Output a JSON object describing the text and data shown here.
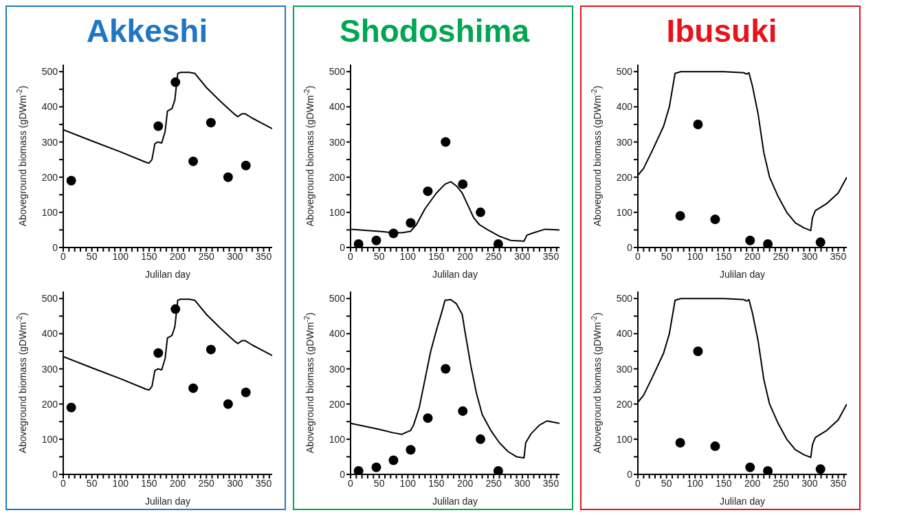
{
  "chart_data": [
    {
      "type": "line",
      "title": "Akkeshi",
      "xlabel": "Julilan day",
      "ylabel": "Aboveground biomass (gDWm$^{-2}$)",
      "xlim": [
        0,
        365
      ],
      "ylim": [
        0,
        520
      ],
      "xticks": [
        0,
        {
          "value": 10,
          "label": null
        },
        {
          "value": 20,
          "label": null
        },
        {
          "value": 30,
          "label": null
        },
        {
          "value": 40,
          "label": null
        },
        50,
        {
          "value": 60,
          "label": null
        },
        {
          "value": 70,
          "label": null
        },
        {
          "value": 80,
          "label": null
        },
        {
          "value": 90,
          "label": null
        },
        100,
        {
          "value": 110,
          "label": null
        },
        {
          "value": 120,
          "label": null
        },
        {
          "value": 130,
          "label": null
        },
        {
          "value": 140,
          "label": null
        },
        150,
        {
          "value": 160,
          "label": null
        },
        {
          "value": 170,
          "label": null
        },
        {
          "value": 180,
          "label": null
        },
        {
          "value": 190,
          "label": null
        },
        200,
        {
          "value": 210,
          "label": null
        },
        {
          "value": 220,
          "label": null
        },
        {
          "value": 230,
          "label": null
        },
        {
          "value": 240,
          "label": null
        },
        250,
        {
          "value": 260,
          "label": null
        },
        {
          "value": 270,
          "label": null
        },
        {
          "value": 280,
          "label": null
        },
        {
          "value": 290,
          "label": null
        },
        300,
        {
          "value": 310,
          "label": null
        },
        {
          "value": 320,
          "label": null
        },
        {
          "value": 330,
          "label": null
        },
        {
          "value": 340,
          "label": null
        },
        350,
        {
          "value": 360,
          "label": null
        }
      ],
      "yticks": [
        0,
        {
          "value": 50,
          "label": null
        },
        100,
        {
          "value": 150,
          "label": null
        },
        200,
        {
          "value": 250,
          "label": null
        },
        300,
        {
          "value": 350,
          "label": null
        },
        400,
        {
          "value": 450,
          "label": null
        },
        500
      ],
      "series": [
        {
          "type": "line",
          "color": "#000000",
          "x": [
            0,
            50,
            100,
            145,
            150,
            155,
            160,
            165,
            172,
            178,
            182,
            190,
            195,
            200,
            205,
            220,
            230,
            250,
            275,
            300,
            305,
            312,
            318,
            330,
            345,
            365
          ],
          "values": [
            335,
            303,
            272,
            242,
            240,
            250,
            295,
            300,
            297,
            330,
            388,
            395,
            420,
            495,
            498,
            498,
            495,
            455,
            415,
            378,
            372,
            380,
            380,
            368,
            355,
            338
          ]
        },
        {
          "type": "scatter",
          "marker": "circle",
          "color": "#000000",
          "x": [
            14,
            166,
            196,
            227,
            258,
            288,
            319
          ],
          "values": [
            190,
            345,
            470,
            245,
            355,
            200,
            233
          ]
        }
      ]
    },
    {
      "type": "line",
      "title": "Shodoshima",
      "xlabel": "Julilan day",
      "ylabel": "Aboveground biomass (gDWm$^{-2}$)",
      "xlim": [
        0,
        365
      ],
      "ylim": [
        0,
        520
      ],
      "xticks": [
        0,
        {
          "value": 10,
          "label": null
        },
        {
          "value": 20,
          "label": null
        },
        {
          "value": 30,
          "label": null
        },
        {
          "value": 40,
          "label": null
        },
        50,
        {
          "value": 60,
          "label": null
        },
        {
          "value": 70,
          "label": null
        },
        {
          "value": 80,
          "label": null
        },
        {
          "value": 90,
          "label": null
        },
        100,
        {
          "value": 110,
          "label": null
        },
        {
          "value": 120,
          "label": null
        },
        {
          "value": 130,
          "label": null
        },
        {
          "value": 140,
          "label": null
        },
        150,
        {
          "value": 160,
          "label": null
        },
        {
          "value": 170,
          "label": null
        },
        {
          "value": 180,
          "label": null
        },
        {
          "value": 190,
          "label": null
        },
        200,
        {
          "value": 210,
          "label": null
        },
        {
          "value": 220,
          "label": null
        },
        {
          "value": 230,
          "label": null
        },
        {
          "value": 240,
          "label": null
        },
        250,
        {
          "value": 260,
          "label": null
        },
        {
          "value": 270,
          "label": null
        },
        {
          "value": 280,
          "label": null
        },
        {
          "value": 290,
          "label": null
        },
        300,
        {
          "value": 310,
          "label": null
        },
        {
          "value": 320,
          "label": null
        },
        {
          "value": 330,
          "label": null
        },
        {
          "value": 340,
          "label": null
        },
        350,
        {
          "value": 360,
          "label": null
        }
      ],
      "yticks": [
        0,
        {
          "value": 50,
          "label": null
        },
        100,
        {
          "value": 150,
          "label": null
        },
        200,
        {
          "value": 250,
          "label": null
        },
        300,
        {
          "value": 350,
          "label": null
        },
        400,
        {
          "value": 450,
          "label": null
        },
        500
      ],
      "series": [
        {
          "type": "line",
          "color": "#000000",
          "x": [
            0,
            50,
            75,
            90,
            105,
            115,
            130,
            150,
            165,
            175,
            185,
            195,
            205,
            215,
            225,
            240,
            260,
            280,
            303,
            308,
            320,
            340,
            365
          ],
          "values": [
            52,
            46,
            42,
            42,
            46,
            65,
            110,
            155,
            180,
            187,
            175,
            155,
            120,
            85,
            65,
            50,
            32,
            20,
            18,
            35,
            42,
            52,
            50
          ]
        },
        {
          "type": "scatter",
          "marker": "circle",
          "color": "#000000",
          "x": [
            14,
            45,
            75,
            105,
            135,
            166,
            196,
            227,
            258
          ],
          "values": [
            10,
            20,
            40,
            70,
            160,
            300,
            180,
            100,
            10
          ]
        }
      ]
    },
    {
      "type": "line",
      "title": "Ibusuki",
      "xlabel": "Julilan day",
      "ylabel": "Aboveground biomass (gDWm$^{-2}$)",
      "xlim": [
        0,
        365
      ],
      "ylim": [
        0,
        520
      ],
      "xticks": [
        0,
        {
          "value": 10,
          "label": null
        },
        {
          "value": 20,
          "label": null
        },
        {
          "value": 30,
          "label": null
        },
        {
          "value": 40,
          "label": null
        },
        50,
        {
          "value": 60,
          "label": null
        },
        {
          "value": 70,
          "label": null
        },
        {
          "value": 80,
          "label": null
        },
        {
          "value": 90,
          "label": null
        },
        100,
        {
          "value": 110,
          "label": null
        },
        {
          "value": 120,
          "label": null
        },
        {
          "value": 130,
          "label": null
        },
        {
          "value": 140,
          "label": null
        },
        150,
        {
          "value": 160,
          "label": null
        },
        {
          "value": 170,
          "label": null
        },
        {
          "value": 180,
          "label": null
        },
        {
          "value": 190,
          "label": null
        },
        200,
        {
          "value": 210,
          "label": null
        },
        {
          "value": 220,
          "label": null
        },
        {
          "value": 230,
          "label": null
        },
        {
          "value": 240,
          "label": null
        },
        250,
        {
          "value": 260,
          "label": null
        },
        {
          "value": 270,
          "label": null
        },
        {
          "value": 280,
          "label": null
        },
        {
          "value": 290,
          "label": null
        },
        300,
        {
          "value": 310,
          "label": null
        },
        {
          "value": 320,
          "label": null
        },
        {
          "value": 330,
          "label": null
        },
        {
          "value": 340,
          "label": null
        },
        350,
        {
          "value": 360,
          "label": null
        }
      ],
      "yticks": [
        0,
        {
          "value": 50,
          "label": null
        },
        100,
        {
          "value": 150,
          "label": null
        },
        200,
        {
          "value": 250,
          "label": null
        },
        300,
        {
          "value": 350,
          "label": null
        },
        400,
        {
          "value": 450,
          "label": null
        },
        500
      ],
      "series": [
        {
          "type": "line",
          "color": "#000000",
          "x": [
            0,
            10,
            25,
            45,
            55,
            65,
            75,
            150,
            185,
            190,
            194,
            200,
            210,
            220,
            230,
            245,
            260,
            275,
            290,
            302,
            305,
            310,
            330,
            350,
            365
          ],
          "values": [
            205,
            225,
            275,
            345,
            400,
            495,
            500,
            500,
            497,
            493,
            497,
            460,
            380,
            270,
            200,
            145,
            100,
            70,
            56,
            48,
            85,
            105,
            125,
            155,
            200
          ]
        },
        {
          "type": "scatter",
          "marker": "circle",
          "color": "#000000",
          "x": [
            74,
            105,
            135,
            196,
            227,
            319
          ],
          "values": [
            90,
            350,
            80,
            20,
            10,
            15
          ]
        }
      ]
    },
    {
      "type": "line",
      "xlabel": "Julilan day",
      "ylabel": "Aboveground biomass (gDWm$^{-2}$)",
      "xlim": [
        0,
        365
      ],
      "ylim": [
        0,
        520
      ],
      "xticks": [
        0,
        {
          "value": 10,
          "label": null
        },
        {
          "value": 20,
          "label": null
        },
        {
          "value": 30,
          "label": null
        },
        {
          "value": 40,
          "label": null
        },
        50,
        {
          "value": 60,
          "label": null
        },
        {
          "value": 70,
          "label": null
        },
        {
          "value": 80,
          "label": null
        },
        {
          "value": 90,
          "label": null
        },
        100,
        {
          "value": 110,
          "label": null
        },
        {
          "value": 120,
          "label": null
        },
        {
          "value": 130,
          "label": null
        },
        {
          "value": 140,
          "label": null
        },
        150,
        {
          "value": 160,
          "label": null
        },
        {
          "value": 170,
          "label": null
        },
        {
          "value": 180,
          "label": null
        },
        {
          "value": 190,
          "label": null
        },
        200,
        {
          "value": 210,
          "label": null
        },
        {
          "value": 220,
          "label": null
        },
        {
          "value": 230,
          "label": null
        },
        {
          "value": 240,
          "label": null
        },
        250,
        {
          "value": 260,
          "label": null
        },
        {
          "value": 270,
          "label": null
        },
        {
          "value": 280,
          "label": null
        },
        {
          "value": 290,
          "label": null
        },
        300,
        {
          "value": 310,
          "label": null
        },
        {
          "value": 320,
          "label": null
        },
        {
          "value": 330,
          "label": null
        },
        {
          "value": 340,
          "label": null
        },
        350,
        {
          "value": 360,
          "label": null
        }
      ],
      "yticks": [
        0,
        {
          "value": 50,
          "label": null
        },
        100,
        {
          "value": 150,
          "label": null
        },
        200,
        {
          "value": 250,
          "label": null
        },
        300,
        {
          "value": 350,
          "label": null
        },
        400,
        {
          "value": 450,
          "label": null
        },
        500
      ],
      "series": [
        {
          "type": "line",
          "color": "#000000",
          "x": [
            0,
            50,
            100,
            145,
            150,
            155,
            160,
            165,
            172,
            178,
            182,
            190,
            195,
            200,
            205,
            220,
            230,
            250,
            275,
            300,
            305,
            312,
            318,
            330,
            345,
            365
          ],
          "values": [
            335,
            303,
            272,
            242,
            240,
            250,
            295,
            300,
            297,
            330,
            388,
            395,
            420,
            495,
            498,
            498,
            495,
            455,
            415,
            378,
            372,
            380,
            380,
            368,
            355,
            338
          ]
        },
        {
          "type": "scatter",
          "marker": "circle",
          "color": "#000000",
          "x": [
            14,
            166,
            196,
            227,
            258,
            288,
            319
          ],
          "values": [
            190,
            345,
            470,
            245,
            355,
            200,
            233
          ]
        }
      ]
    },
    {
      "type": "line",
      "xlabel": "Julilan day",
      "ylabel": "Aboveground biomass (gDWm$^{-2}$)",
      "xlim": [
        0,
        365
      ],
      "ylim": [
        0,
        520
      ],
      "xticks": [
        0,
        {
          "value": 10,
          "label": null
        },
        {
          "value": 20,
          "label": null
        },
        {
          "value": 30,
          "label": null
        },
        {
          "value": 40,
          "label": null
        },
        50,
        {
          "value": 60,
          "label": null
        },
        {
          "value": 70,
          "label": null
        },
        {
          "value": 80,
          "label": null
        },
        {
          "value": 90,
          "label": null
        },
        100,
        {
          "value": 110,
          "label": null
        },
        {
          "value": 120,
          "label": null
        },
        {
          "value": 130,
          "label": null
        },
        {
          "value": 140,
          "label": null
        },
        150,
        {
          "value": 160,
          "label": null
        },
        {
          "value": 170,
          "label": null
        },
        {
          "value": 180,
          "label": null
        },
        {
          "value": 190,
          "label": null
        },
        200,
        {
          "value": 210,
          "label": null
        },
        {
          "value": 220,
          "label": null
        },
        {
          "value": 230,
          "label": null
        },
        {
          "value": 240,
          "label": null
        },
        250,
        {
          "value": 260,
          "label": null
        },
        {
          "value": 270,
          "label": null
        },
        {
          "value": 280,
          "label": null
        },
        {
          "value": 290,
          "label": null
        },
        300,
        {
          "value": 310,
          "label": null
        },
        {
          "value": 320,
          "label": null
        },
        {
          "value": 330,
          "label": null
        },
        {
          "value": 340,
          "label": null
        },
        350,
        {
          "value": 360,
          "label": null
        }
      ],
      "yticks": [
        0,
        {
          "value": 50,
          "label": null
        },
        100,
        {
          "value": 150,
          "label": null
        },
        200,
        {
          "value": 250,
          "label": null
        },
        300,
        {
          "value": 350,
          "label": null
        },
        400,
        {
          "value": 450,
          "label": null
        },
        500
      ],
      "series": [
        {
          "type": "line",
          "color": "#000000",
          "x": [
            0,
            50,
            75,
            90,
            95,
            105,
            110,
            120,
            130,
            140,
            150,
            160,
            165,
            175,
            185,
            195,
            200,
            210,
            220,
            230,
            245,
            260,
            275,
            290,
            303,
            306,
            315,
            330,
            343,
            365
          ],
          "values": [
            145,
            128,
            118,
            114,
            118,
            125,
            140,
            190,
            270,
            350,
            410,
            465,
            495,
            497,
            485,
            455,
            405,
            310,
            230,
            170,
            125,
            90,
            65,
            50,
            47,
            90,
            115,
            140,
            152,
            145
          ]
        },
        {
          "type": "scatter",
          "marker": "circle",
          "color": "#000000",
          "x": [
            14,
            45,
            75,
            105,
            135,
            166,
            196,
            227,
            258
          ],
          "values": [
            10,
            20,
            40,
            70,
            160,
            300,
            180,
            100,
            10
          ]
        }
      ]
    },
    {
      "type": "line",
      "xlabel": "Julilan day",
      "ylabel": "Aboveground biomass (gDWm$^{-2}$)",
      "xlim": [
        0,
        365
      ],
      "ylim": [
        0,
        520
      ],
      "xticks": [
        0,
        {
          "value": 10,
          "label": null
        },
        {
          "value": 20,
          "label": null
        },
        {
          "value": 30,
          "label": null
        },
        {
          "value": 40,
          "label": null
        },
        50,
        {
          "value": 60,
          "label": null
        },
        {
          "value": 70,
          "label": null
        },
        {
          "value": 80,
          "label": null
        },
        {
          "value": 90,
          "label": null
        },
        100,
        {
          "value": 110,
          "label": null
        },
        {
          "value": 120,
          "label": null
        },
        {
          "value": 130,
          "label": null
        },
        {
          "value": 140,
          "label": null
        },
        150,
        {
          "value": 160,
          "label": null
        },
        {
          "value": 170,
          "label": null
        },
        {
          "value": 180,
          "label": null
        },
        {
          "value": 190,
          "label": null
        },
        200,
        {
          "value": 210,
          "label": null
        },
        {
          "value": 220,
          "label": null
        },
        {
          "value": 230,
          "label": null
        },
        {
          "value": 240,
          "label": null
        },
        250,
        {
          "value": 260,
          "label": null
        },
        {
          "value": 270,
          "label": null
        },
        {
          "value": 280,
          "label": null
        },
        {
          "value": 290,
          "label": null
        },
        300,
        {
          "value": 310,
          "label": null
        },
        {
          "value": 320,
          "label": null
        },
        {
          "value": 330,
          "label": null
        },
        {
          "value": 340,
          "label": null
        },
        350,
        {
          "value": 360,
          "label": null
        }
      ],
      "yticks": [
        0,
        {
          "value": 50,
          "label": null
        },
        100,
        {
          "value": 150,
          "label": null
        },
        200,
        {
          "value": 250,
          "label": null
        },
        300,
        {
          "value": 350,
          "label": null
        },
        400,
        {
          "value": 450,
          "label": null
        },
        500
      ],
      "series": [
        {
          "type": "line",
          "color": "#000000",
          "x": [
            0,
            10,
            25,
            45,
            55,
            65,
            75,
            150,
            185,
            190,
            194,
            200,
            210,
            220,
            230,
            245,
            260,
            275,
            290,
            302,
            305,
            310,
            330,
            350,
            365
          ],
          "values": [
            205,
            225,
            275,
            345,
            400,
            495,
            500,
            500,
            497,
            493,
            497,
            460,
            380,
            270,
            200,
            145,
            100,
            70,
            56,
            48,
            85,
            105,
            125,
            155,
            200
          ]
        },
        {
          "type": "scatter",
          "marker": "circle",
          "color": "#000000",
          "x": [
            74,
            105,
            135,
            196,
            227,
            319
          ],
          "values": [
            90,
            350,
            80,
            20,
            10,
            15
          ]
        }
      ]
    }
  ]
}
